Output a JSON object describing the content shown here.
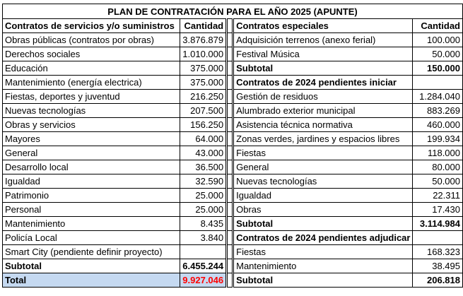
{
  "title": "PLAN DE CONTRATACIÓN PARA EL AÑO 2025 (APUNTE)",
  "left": {
    "header": {
      "label": "Contratos de servicios y/o suministros",
      "qty": "Cantidad"
    },
    "rows": [
      {
        "label": "Obras públicas (contratos por obras)",
        "qty": "3.876.879"
      },
      {
        "label": "Derechos sociales",
        "qty": "1.010.000"
      },
      {
        "label": "Educación",
        "qty": "375.000"
      },
      {
        "label": "Mantenimiento (energía electrica)",
        "qty": "375.000"
      },
      {
        "label": "Fiestas, deportes y juventud",
        "qty": "216.250"
      },
      {
        "label": "Nuevas tecnologías",
        "qty": "207.500"
      },
      {
        "label": "Obras y servicios",
        "qty": "156.250"
      },
      {
        "label": "Mayores",
        "qty": "64.000"
      },
      {
        "label": "General",
        "qty": "43.000"
      },
      {
        "label": "Desarrollo local",
        "qty": "36.500"
      },
      {
        "label": "Igualdad",
        "qty": "32.590"
      },
      {
        "label": "Patrimonio",
        "qty": "25.000"
      },
      {
        "label": "Personal",
        "qty": "25.000"
      },
      {
        "label": "Mantenimiento",
        "qty": "8.435"
      },
      {
        "label": "Policía Local",
        "qty": "3.840"
      },
      {
        "label": "Smart City (pendiente definir proyecto)",
        "qty": ""
      }
    ],
    "subtotal": {
      "label": "Subtotal",
      "qty": "6.455.244"
    },
    "total": {
      "label": "Total",
      "qty": "9.927.046"
    }
  },
  "right": {
    "especiales": {
      "header": {
        "label": "Contratos especiales",
        "qty": "Cantidad"
      },
      "rows": [
        {
          "label": "Adquisición terrenos (anexo ferial)",
          "qty": "100.000"
        },
        {
          "label": "Festival Música",
          "qty": "50.000"
        }
      ],
      "subtotal": {
        "label": "Subtotal",
        "qty": "150.000"
      }
    },
    "iniciar": {
      "header": {
        "label": "Contratos de 2024 pendientes iniciar"
      },
      "rows": [
        {
          "label": "Gestión de residuos",
          "qty": "1.284.040"
        },
        {
          "label": "Alumbrado exterior municipal",
          "qty": "883.269"
        },
        {
          "label": "Asistencia técnica normativa",
          "qty": "460.000"
        },
        {
          "label": "Zonas verdes, jardines y espacios libres",
          "qty": "199.934"
        },
        {
          "label": "Fiestas",
          "qty": "118.000"
        },
        {
          "label": "General",
          "qty": "80.000"
        },
        {
          "label": "Nuevas tecnologías",
          "qty": "50.000"
        },
        {
          "label": "Igualdad",
          "qty": "22.311"
        },
        {
          "label": "Obras",
          "qty": "17.430"
        }
      ],
      "subtotal": {
        "label": "Subtotal",
        "qty": "3.114.984"
      }
    },
    "adjudicar": {
      "header": {
        "label": "Contratos de 2024 pendientes adjudicar"
      },
      "rows": [
        {
          "label": "Fiestas",
          "qty": "168.323"
        },
        {
          "label": "Mantenimiento",
          "qty": "38.495"
        }
      ],
      "subtotal": {
        "label": "Subtotal",
        "qty": "206.818"
      }
    }
  }
}
